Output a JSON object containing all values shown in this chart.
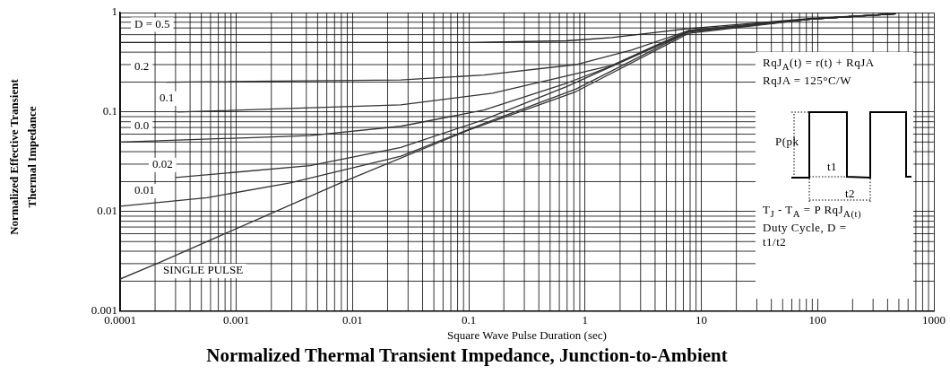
{
  "chart_data": {
    "type": "line",
    "title": "Normalized Thermal Transient Impedance, Junction-to-Ambient",
    "xlabel": "Square Wave Pulse Duration (sec)",
    "ylabel": "Normalized Effective Transient Thermal Impedance",
    "log": "xy",
    "grid": true,
    "legend": false,
    "marker": "none",
    "line_style": "solid",
    "xlim": [
      0.0001,
      1000
    ],
    "xticks": [
      0.0001,
      0.001,
      0.01,
      0.1,
      1,
      10,
      100,
      1000
    ],
    "ylim": [
      0.001,
      1
    ],
    "yticks": [
      0.001,
      0.01,
      0.1,
      1
    ],
    "series": [
      {
        "name": "D = 0.5",
        "color": "#222222",
        "x": [
          0.0001,
          0.01,
          0.1,
          0.69,
          1.7,
          7.8,
          87,
          470
        ],
        "values": [
          0.5,
          0.5,
          0.5,
          0.52,
          0.56,
          0.69,
          0.87,
          0.97
        ]
      },
      {
        "name": "0.2",
        "color": "#333333",
        "x": [
          0.00025,
          0.026,
          0.135,
          0.83,
          2.5,
          7.8,
          87,
          470
        ],
        "values": [
          0.2,
          0.21,
          0.236,
          0.3,
          0.42,
          0.66,
          0.86,
          0.97
        ]
      },
      {
        "name": "0.1",
        "color": "#333333",
        "x": [
          0.00031,
          0.026,
          0.16,
          1.7,
          7.8,
          87,
          470
        ],
        "values": [
          0.1,
          0.118,
          0.155,
          0.295,
          0.66,
          0.86,
          0.97
        ]
      },
      {
        "name": "0.0",
        "color": "#333333",
        "x": [
          0.0001,
          0.0043,
          0.026,
          0.135,
          0.69,
          1.7,
          7.8,
          87,
          470
        ],
        "values": [
          0.05,
          0.058,
          0.072,
          0.105,
          0.195,
          0.29,
          0.65,
          0.86,
          0.97
        ]
      },
      {
        "name": "0.02",
        "color": "#333333",
        "x": [
          0.0003,
          0.0043,
          0.026,
          0.135,
          0.69,
          7.8,
          87,
          470
        ],
        "values": [
          0.022,
          0.029,
          0.044,
          0.084,
          0.18,
          0.64,
          0.86,
          0.97
        ]
      },
      {
        "name": "0.01",
        "color": "#333333",
        "x": [
          0.0001,
          0.00056,
          0.0029,
          0.026,
          0.135,
          0.83,
          7.8,
          87,
          470
        ],
        "values": [
          0.0113,
          0.0138,
          0.0194,
          0.036,
          0.077,
          0.17,
          0.64,
          0.86,
          0.97
        ]
      },
      {
        "name": "SINGLE PULSE",
        "color": "#333333",
        "x": [
          0.0001,
          0.00022,
          0.0078,
          0.1,
          0.83,
          7.8,
          87,
          470
        ],
        "values": [
          0.0021,
          0.0031,
          0.0193,
          0.066,
          0.16,
          0.62,
          0.86,
          0.97
        ]
      }
    ],
    "annotations": [
      "RqJ$_{A}$(t) = r(t) + RqJA",
      "RqJA = 125°C/W",
      "P(pk",
      "t1",
      "t2",
      "T$_{J}$ - T$_{A}$ = P RqJ$_{A(t)}$",
      "Duty Cycle, D = t1/t2"
    ]
  }
}
